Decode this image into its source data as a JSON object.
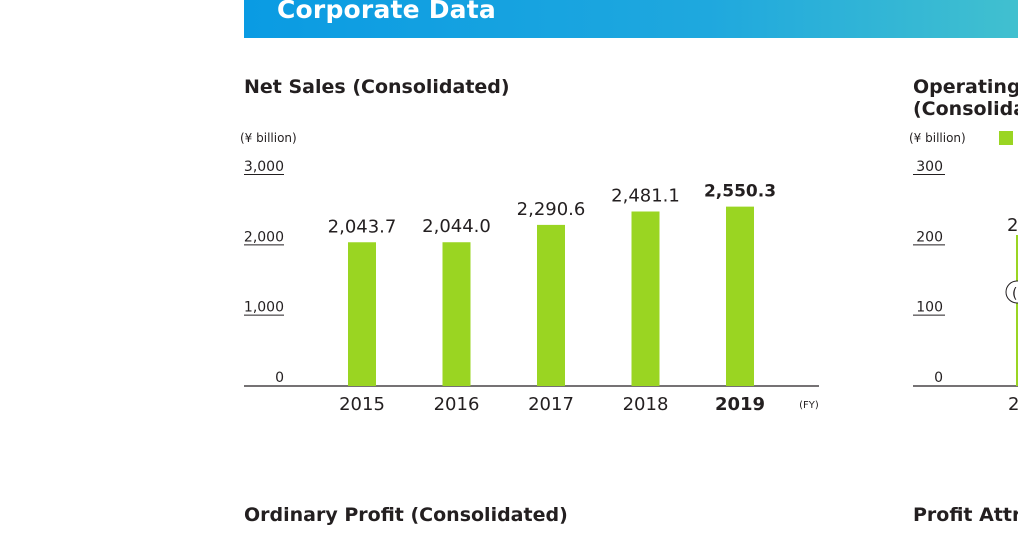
{
  "header": {
    "title": "Corporate Data"
  },
  "sections": {
    "net_sales_title": "Net Sales (Consolidated)",
    "operating_title_line1": "Operating",
    "operating_title_line2": "(Consolida",
    "ordinary_profit_title": "Ordinary Profit (Consolidated)",
    "profit_attr_title": "Profit Attr"
  },
  "colors": {
    "bar": "#9ad522",
    "axis": "#231f20",
    "banner_start": "#0a9be3",
    "banner_end": "#41c0cf"
  },
  "chart_data": [
    {
      "type": "bar",
      "title": "Net Sales (Consolidated)",
      "unit_label": "(¥ billion)",
      "xlabel": "(FY)",
      "categories": [
        "2015",
        "2016",
        "2017",
        "2018",
        "2019"
      ],
      "values": [
        2043.7,
        2044.0,
        2290.6,
        2481.1,
        2550.3
      ],
      "value_labels": [
        "2,043.7",
        "2,044.0",
        "2,290.6",
        "2,481.1",
        "2,550.3"
      ],
      "highlight_index": 4,
      "yticks": [
        0,
        1000,
        2000,
        3000
      ],
      "ytick_labels": [
        "0",
        "1,000",
        "2,000",
        "3,000"
      ],
      "ylim": [
        0,
        3000
      ],
      "grid": false,
      "legend": "none"
    },
    {
      "type": "bar",
      "title": "Operating (Consolida",
      "unit_label": "(¥ billion)",
      "yticks": [
        0,
        100,
        200,
        300
      ],
      "ytick_labels": [
        "0",
        "100",
        "200",
        "300"
      ],
      "ylim": [
        0,
        300
      ],
      "partial_labels": [
        "2",
        "2",
        "(1"
      ],
      "legend": "top"
    }
  ]
}
